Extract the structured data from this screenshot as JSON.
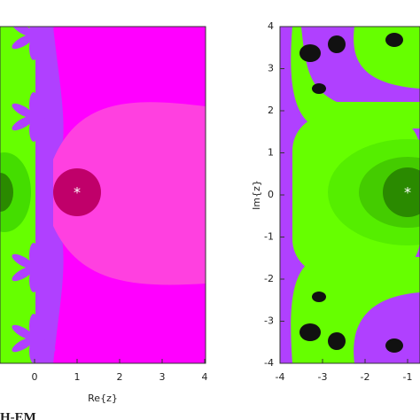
{
  "panels": [
    {
      "xlabel": "Re{z}",
      "xticks": [
        0,
        1,
        2,
        3,
        4
      ],
      "caption": "H-EM"
    },
    {
      "ylabel": "Im{z}",
      "yticks": [
        4,
        3,
        2,
        1,
        0,
        -1,
        -2,
        -3,
        -4
      ],
      "xticks": [
        -4,
        -3,
        -2,
        -1
      ]
    }
  ]
}
